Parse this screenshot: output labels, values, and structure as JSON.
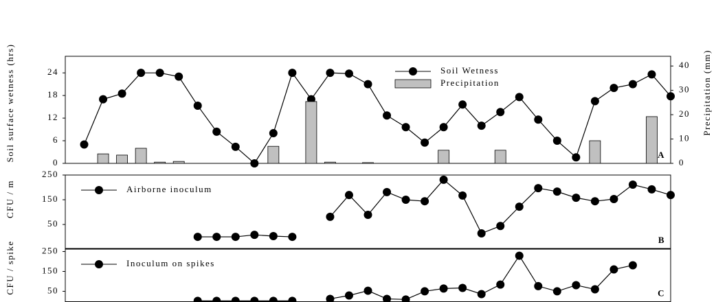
{
  "chart_data": [
    {
      "type": "line",
      "panel_label": "A",
      "ylabel": "Soil surface wetness (hrs)",
      "y2label": "Precipitation (mm)",
      "x": [
        1,
        2,
        3,
        4,
        5,
        6,
        7,
        8,
        9,
        10,
        11,
        12,
        13,
        14,
        15,
        16,
        17,
        18,
        19,
        20,
        21,
        22,
        23,
        24,
        25,
        26,
        27,
        28,
        29,
        30,
        31,
        32
      ],
      "xlim": [
        0,
        32
      ],
      "ylim": [
        0,
        28.4
      ],
      "yticks": [
        0,
        6,
        12,
        18,
        24
      ],
      "y2lim": [
        0,
        44
      ],
      "y2ticks": [
        0,
        10,
        20,
        30,
        40
      ],
      "legend": "top-right",
      "series": [
        {
          "name": "Soil Wetness",
          "type": "line",
          "color": "#000000",
          "values": [
            5,
            17,
            18.5,
            24,
            24,
            23,
            15.3,
            8.4,
            4.4,
            0,
            8,
            24,
            17,
            24,
            23.8,
            21,
            12.7,
            9.6,
            5.5,
            9.6,
            15.6,
            10,
            13.6,
            17.6,
            11.6,
            6,
            1.6,
            16.5,
            20,
            21,
            23.6,
            17.8
          ]
        },
        {
          "name": "Precipitation",
          "type": "bar",
          "axis": "y2",
          "color": "#c0c0c0",
          "values": [
            0,
            3.9,
            3.4,
            6.2,
            0.5,
            0.8,
            0,
            0,
            0,
            0,
            7,
            0,
            25.4,
            0.5,
            0,
            0.3,
            0,
            0,
            0,
            5.4,
            0,
            0,
            5.4,
            0,
            0,
            0,
            0,
            9.3,
            0,
            0,
            19.2,
            0
          ]
        }
      ]
    },
    {
      "type": "line",
      "panel_label": "B",
      "ylabel": "CFU / m",
      "x": [
        1,
        2,
        3,
        4,
        5,
        6,
        7,
        8,
        9,
        10,
        11,
        12,
        13,
        14,
        15,
        16,
        17,
        18,
        19,
        20,
        21,
        22,
        23,
        24,
        25,
        26,
        27,
        28,
        29,
        30,
        31,
        32
      ],
      "xlim": [
        0,
        32
      ],
      "ylim": [
        -47,
        250
      ],
      "yticks": [
        50,
        150,
        250
      ],
      "legend": "top-left",
      "series": [
        {
          "name": "Airborne inoculum",
          "type": "line",
          "color": "#000000",
          "values": [
            null,
            null,
            null,
            null,
            null,
            null,
            0,
            0,
            0,
            8,
            3,
            0,
            null,
            81,
            169,
            89,
            181,
            150,
            144,
            231,
            167,
            14,
            44,
            122,
            197,
            183,
            158,
            144,
            153,
            211,
            192,
            169
          ]
        }
      ]
    },
    {
      "type": "line",
      "panel_label": "C",
      "ylabel": "CFU / spike",
      "x": [
        1,
        2,
        3,
        4,
        5,
        6,
        7,
        8,
        9,
        10,
        11,
        12,
        13,
        14,
        15,
        16,
        17,
        18,
        19,
        20,
        21,
        22,
        23,
        24,
        25,
        26,
        27,
        28,
        29,
        30,
        31,
        32
      ],
      "xlim": [
        0,
        32
      ],
      "ylim": [
        -2,
        262
      ],
      "yticks": [
        50,
        150,
        250
      ],
      "legend": "top-left",
      "series": [
        {
          "name": "Inoculum on spikes",
          "type": "line",
          "color": "#000000",
          "values": [
            null,
            null,
            null,
            null,
            null,
            null,
            2,
            2,
            2,
            2,
            2,
            2,
            null,
            12,
            29,
            53,
            12,
            9,
            50,
            64,
            67,
            36,
            84,
            229,
            76,
            50,
            81,
            60,
            160,
            181,
            null,
            null
          ]
        }
      ]
    }
  ]
}
